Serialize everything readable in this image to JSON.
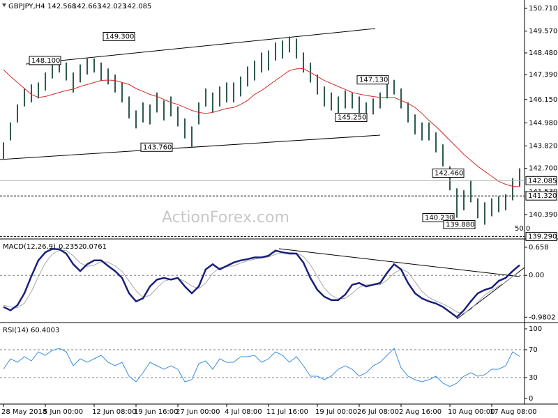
{
  "chart_data": [
    {
      "type": "ohlc",
      "title": "GBPJPY,H4",
      "ohlc": [
        142.568,
        142.663,
        142.023,
        142.085
      ],
      "watermark": "ActionForex.com",
      "fib_label": "50.0",
      "categories": [
        "28 May 2018",
        null,
        null,
        null,
        null,
        null,
        "5 Jun 00:00",
        null,
        null,
        null,
        null,
        null,
        null,
        "12 Jun 08:00",
        null,
        null,
        null,
        null,
        null,
        "19 Jun 16:00",
        null,
        null,
        null,
        null,
        null,
        "27 Jun 00:00",
        null,
        null,
        null,
        null,
        null,
        null,
        "4 Jul 08:00",
        null,
        null,
        null,
        null,
        null,
        "11 Jul 16:00",
        null,
        null,
        null,
        null,
        null,
        null,
        "19 Jul 00:00",
        null,
        null,
        null,
        null,
        null,
        "26 Jul 08:00",
        null,
        null,
        null,
        null,
        null,
        "2 Aug 16:00",
        null,
        null,
        null,
        null,
        null,
        null,
        "10 Aug 00:00",
        null,
        null,
        null,
        null,
        null,
        "17 Aug 08:00",
        null,
        null,
        null,
        null
      ],
      "color": "#2f5a4c",
      "high": [
        144.0,
        145.0,
        145.9,
        146.7,
        146.9,
        147.0,
        147.5,
        148.0,
        148.3,
        148.0,
        147.5,
        147.9,
        148.2,
        148.2,
        148.0,
        147.7,
        147.4,
        147.0,
        146.3,
        145.6,
        146.0,
        145.9,
        146.5,
        146.1,
        146.3,
        145.8,
        145.2,
        144.8,
        146.0,
        146.7,
        146.5,
        146.8,
        147.0,
        147.0,
        147.3,
        147.8,
        148.1,
        148.5,
        148.6,
        149.0,
        149.1,
        149.3,
        149.2,
        148.5,
        148.0,
        147.4,
        146.8,
        146.5,
        146.3,
        146.6,
        146.5,
        146.3,
        146.0,
        146.2,
        146.5,
        147.0,
        147.13,
        146.7,
        146.0,
        145.4,
        145.0,
        145.0,
        144.5,
        143.9,
        142.8,
        141.7,
        141.6,
        142.1,
        141.2,
        141.0,
        141.2,
        141.3,
        141.4,
        142.2,
        142.7
      ],
      "low": [
        143.15,
        144.1,
        145.0,
        145.8,
        146.0,
        146.2,
        146.6,
        147.2,
        147.5,
        147.1,
        146.5,
        147.0,
        147.4,
        147.5,
        147.1,
        146.9,
        146.5,
        146.0,
        145.2,
        144.7,
        145.0,
        144.9,
        145.5,
        145.1,
        145.3,
        144.8,
        144.2,
        143.76,
        144.9,
        145.8,
        145.5,
        145.8,
        146.0,
        146.0,
        146.3,
        146.8,
        147.1,
        147.5,
        147.6,
        148.1,
        148.2,
        148.5,
        148.2,
        147.5,
        147.0,
        146.4,
        145.8,
        145.6,
        145.4,
        145.7,
        145.7,
        145.4,
        145.25,
        145.4,
        145.7,
        146.2,
        146.4,
        145.7,
        145.0,
        144.4,
        144.1,
        144.1,
        143.5,
        142.8,
        141.6,
        140.23,
        140.6,
        141.0,
        140.2,
        139.88,
        140.3,
        140.5,
        140.6,
        141.1,
        141.8
      ],
      "ma": {
        "color": "#d42a2a",
        "values": [
          147.64,
          147.3,
          147.0,
          146.7,
          146.4,
          146.25,
          146.3,
          146.4,
          146.5,
          146.6,
          146.67,
          146.8,
          146.9,
          147.0,
          147.1,
          147.12,
          147.1,
          147.0,
          146.9,
          146.7,
          146.55,
          146.4,
          146.3,
          146.15,
          146.0,
          145.9,
          145.75,
          145.6,
          145.5,
          145.45,
          145.5,
          145.6,
          145.7,
          145.75,
          145.9,
          146.1,
          146.4,
          146.6,
          146.85,
          147.1,
          147.35,
          147.6,
          147.68,
          147.7,
          147.5,
          147.3,
          147.1,
          146.95,
          146.8,
          146.65,
          146.5,
          146.42,
          146.35,
          146.3,
          146.25,
          146.25,
          146.25,
          146.1,
          145.95,
          145.75,
          145.45,
          145.1,
          144.8,
          144.45,
          144.1,
          143.75,
          143.4,
          143.1,
          142.8,
          142.55,
          142.3,
          142.05,
          141.9,
          141.8,
          141.78
        ]
      },
      "ylim": [
        139.2,
        151.06
      ],
      "yticks": [
        {
          "value": 150.71,
          "label": "150.710"
        },
        {
          "value": 149.57,
          "label": "149.570"
        },
        {
          "value": 148.48,
          "label": "148.480"
        },
        {
          "value": 147.39,
          "label": "147.390"
        },
        {
          "value": 146.15,
          "label": "146.150"
        },
        {
          "value": 144.98,
          "label": "144.980"
        },
        {
          "value": 143.82,
          "label": "143.820"
        },
        {
          "value": 142.7,
          "label": "142.700"
        },
        {
          "value": 141.53,
          "label": "141.530"
        },
        {
          "value": 140.39,
          "label": "140.390"
        }
      ],
      "levels": [
        {
          "value": 141.32,
          "label": "141.320"
        },
        {
          "value": 139.29,
          "label": "139.290"
        }
      ],
      "annotations": [
        {
          "value": 148.1,
          "label": "148.100"
        },
        {
          "value": 149.3,
          "label": "149.300"
        },
        {
          "value": 143.76,
          "label": "143.760"
        },
        {
          "value": 147.13,
          "label": "147.130"
        },
        {
          "value": 145.25,
          "label": "145.250"
        },
        {
          "value": 142.46,
          "label": "142.460"
        },
        {
          "value": 140.23,
          "label": "140.230"
        },
        {
          "value": 139.88,
          "label": "139.880"
        }
      ]
    },
    {
      "type": "line",
      "title": "MACD(12,26,9)",
      "readout": [
        0.2352,
        0.0761
      ],
      "ylim": [
        -1.09,
        0.82
      ],
      "yticks": [
        0.658,
        {
          "value": 0,
          "label": "0.00"
        },
        -0.9802
      ],
      "levels": [
        0
      ],
      "series": [
        {
          "color": "#a8a8a8",
          "values": [
            -0.7,
            -0.74,
            -0.76,
            -0.65,
            -0.38,
            -0.03,
            0.29,
            0.5,
            0.59,
            0.58,
            0.46,
            0.29,
            0.21,
            0.24,
            0.32,
            0.31,
            0.22,
            0.09,
            -0.13,
            -0.36,
            -0.52,
            -0.47,
            -0.3,
            -0.14,
            -0.09,
            -0.07,
            -0.14,
            -0.25,
            -0.31,
            -0.18,
            0.05,
            0.18,
            0.21,
            0.22,
            0.29,
            0.34,
            0.38,
            0.41,
            0.43,
            0.49,
            0.53,
            0.54,
            0.52,
            0.44,
            0.25,
            -0.03,
            -0.3,
            -0.47,
            -0.55,
            -0.54,
            -0.42,
            -0.28,
            -0.22,
            -0.22,
            -0.22,
            -0.11,
            0.05,
            0.15,
            0.07,
            -0.15,
            -0.38,
            -0.52,
            -0.6,
            -0.67,
            -0.75,
            -0.86,
            -0.89,
            -0.8,
            -0.62,
            -0.46,
            -0.35,
            -0.25,
            -0.16,
            -0.03,
            0.08
          ]
        },
        {
          "color": "#1a1f7a",
          "values": [
            -0.74,
            -0.82,
            -0.7,
            -0.42,
            -0.02,
            0.35,
            0.54,
            0.62,
            0.61,
            0.51,
            0.26,
            0.1,
            0.26,
            0.35,
            0.35,
            0.22,
            0.1,
            -0.06,
            -0.42,
            -0.61,
            -0.54,
            -0.26,
            -0.1,
            -0.06,
            -0.1,
            -0.06,
            -0.26,
            -0.42,
            -0.26,
            0.14,
            0.26,
            0.14,
            0.22,
            0.3,
            0.35,
            0.38,
            0.42,
            0.42,
            0.46,
            0.58,
            0.54,
            0.51,
            0.51,
            0.3,
            -0.06,
            -0.34,
            -0.5,
            -0.58,
            -0.58,
            -0.45,
            -0.22,
            -0.18,
            -0.26,
            -0.22,
            -0.18,
            0.06,
            0.26,
            0.14,
            -0.18,
            -0.42,
            -0.54,
            -0.61,
            -0.66,
            -0.74,
            -0.86,
            -0.98,
            -0.82,
            -0.61,
            -0.42,
            -0.34,
            -0.29,
            -0.13,
            -0.06,
            0.1,
            0.24
          ]
        }
      ]
    },
    {
      "type": "line",
      "title": "RSI(14)",
      "readout": [
        60.4003
      ],
      "ylim": [
        -8,
        107
      ],
      "yticks": [
        100,
        70,
        30,
        0
      ],
      "levels": [
        70,
        30
      ],
      "series": [
        {
          "color": "#3a8ee0",
          "values": [
            42,
            57,
            52,
            60,
            54,
            67,
            62,
            69,
            72,
            67,
            47,
            57,
            52,
            57,
            62,
            52,
            47,
            52,
            32,
            24,
            37,
            52,
            47,
            42,
            47,
            42,
            24,
            27,
            50,
            54,
            42,
            57,
            52,
            52,
            60,
            60,
            62,
            52,
            57,
            67,
            62,
            52,
            60,
            47,
            32,
            32,
            27,
            32,
            42,
            47,
            42,
            32,
            37,
            47,
            52,
            62,
            72,
            44,
            32,
            27,
            24,
            27,
            32,
            22,
            17,
            22,
            32,
            37,
            32,
            34,
            42,
            42,
            47,
            67,
            60.4
          ]
        }
      ]
    }
  ]
}
